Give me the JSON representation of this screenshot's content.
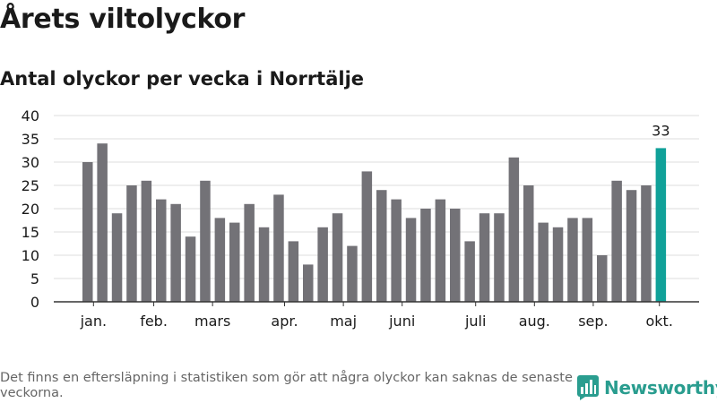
{
  "header": {
    "title": "Årets viltolyckor",
    "subtitle": "Antal olyckor per vecka i Norrtälje"
  },
  "footer": {
    "note": "Det finns en eftersläpning i statistiken som gör att några olyckor kan saknas de senaste veckorna.",
    "logo_text": "Newsworthy"
  },
  "colors": {
    "bar": "#737277",
    "highlight": "#10a199",
    "grid": "#dddddd",
    "axis": "#333333",
    "logo": "#2a9d8f"
  },
  "chart_data": {
    "type": "bar",
    "title": "Årets viltolyckor",
    "subtitle": "Antal olyckor per vecka i Norrtälje",
    "xlabel": "",
    "ylabel": "",
    "ylim": [
      0,
      40
    ],
    "yticks": [
      0,
      5,
      10,
      15,
      20,
      25,
      30,
      35,
      40
    ],
    "grid": true,
    "values": [
      30,
      34,
      19,
      25,
      26,
      22,
      21,
      14,
      26,
      18,
      17,
      21,
      16,
      23,
      13,
      8,
      16,
      19,
      12,
      28,
      24,
      22,
      18,
      20,
      22,
      20,
      13,
      19,
      19,
      31,
      25,
      17,
      16,
      18,
      18,
      10,
      26,
      24,
      25,
      33
    ],
    "highlight_index": 39,
    "highlight_label": "33",
    "month_labels": [
      {
        "label": "jan.",
        "bar_index": 0.4
      },
      {
        "label": "feb.",
        "bar_index": 4.5
      },
      {
        "label": "mars",
        "bar_index": 8.5
      },
      {
        "label": "apr.",
        "bar_index": 13.4
      },
      {
        "label": "maj",
        "bar_index": 17.4
      },
      {
        "label": "juni",
        "bar_index": 21.4
      },
      {
        "label": "juli",
        "bar_index": 26.4
      },
      {
        "label": "aug.",
        "bar_index": 30.4
      },
      {
        "label": "sep.",
        "bar_index": 34.4
      },
      {
        "label": "okt.",
        "bar_index": 38.9
      }
    ]
  }
}
